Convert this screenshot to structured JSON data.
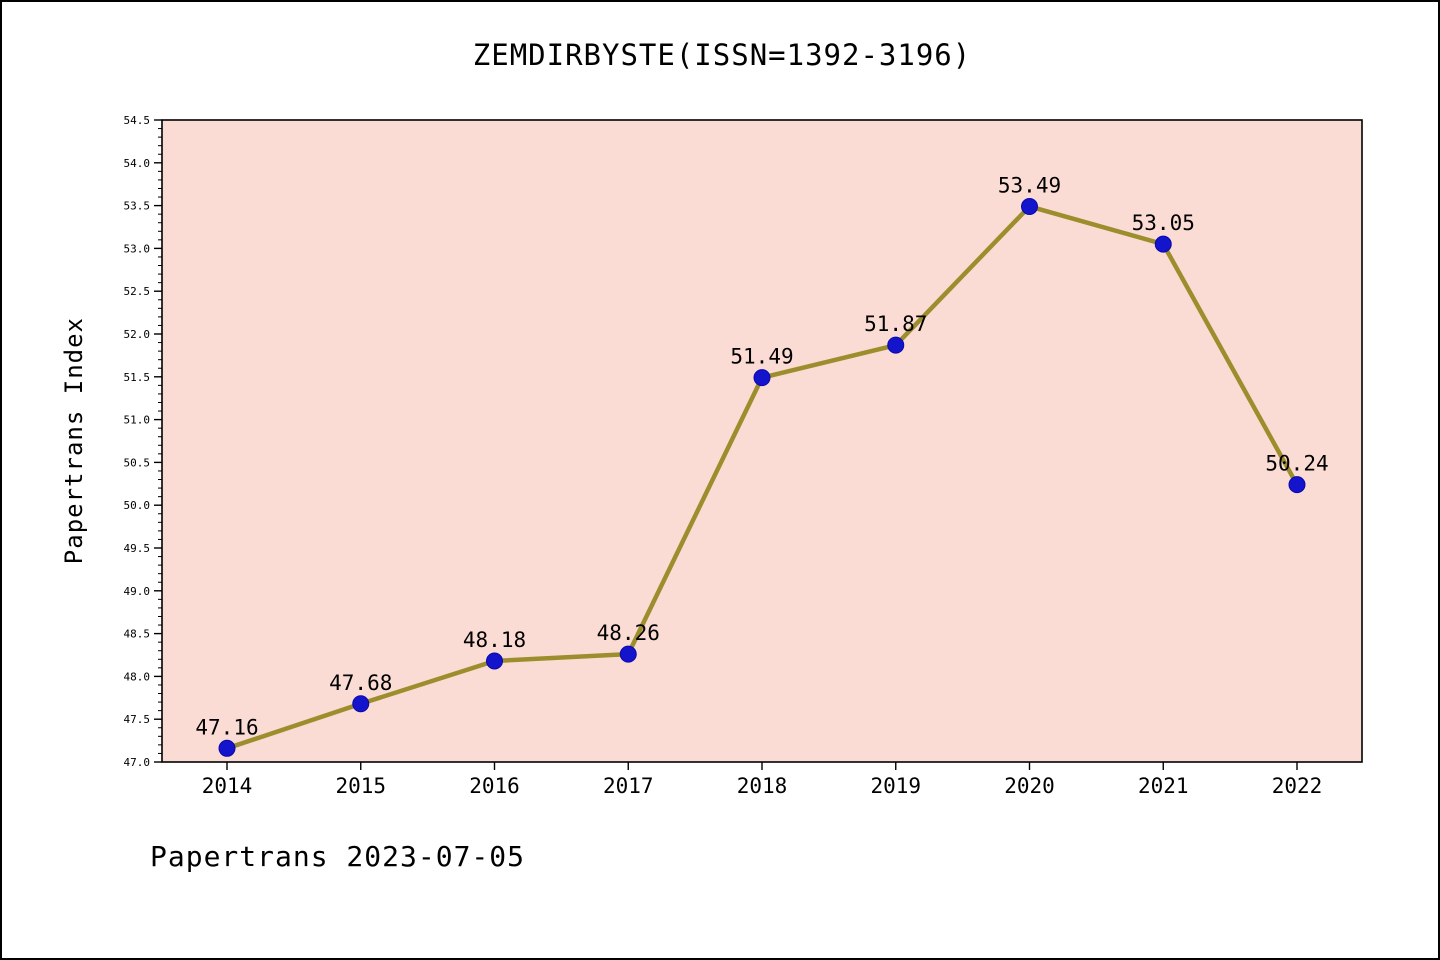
{
  "page": {
    "title": "ZEMDIRBYSTE(ISSN=1392-3196)",
    "footer": "Papertrans 2023-07-05"
  },
  "chart_data": {
    "type": "line",
    "title": "ZEMDIRBYSTE(ISSN=1392-3196)",
    "xlabel": "",
    "ylabel": "Papertrans Index",
    "categories": [
      "2014",
      "2015",
      "2016",
      "2017",
      "2018",
      "2019",
      "2020",
      "2021",
      "2022"
    ],
    "values": [
      47.16,
      47.68,
      48.18,
      48.26,
      51.49,
      51.87,
      53.49,
      53.05,
      50.24
    ],
    "point_labels": [
      "47.16",
      "47.68",
      "48.18",
      "48.26",
      "51.49",
      "51.87",
      "53.49",
      "53.05",
      "50.24"
    ],
    "ylim": [
      47.0,
      54.5
    ],
    "ytick_step": 0.5,
    "ytick_minor_step": 0.1,
    "grid": false,
    "legend": "none",
    "colors": {
      "plot_bg": "#fbdcd5",
      "page_bg": "#ffffff",
      "line": "#9c8e2c",
      "marker": "#1414cc",
      "marker_edge": "#0a0aa8",
      "axis": "#000000"
    }
  }
}
